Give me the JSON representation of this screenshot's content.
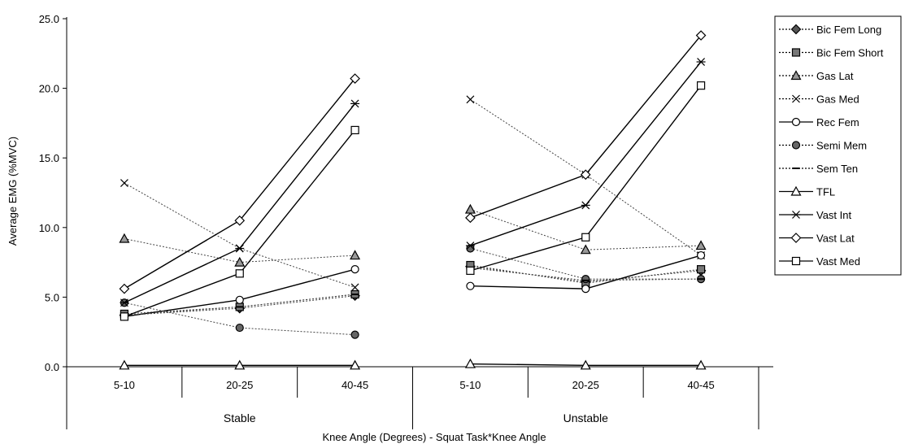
{
  "chart_data": {
    "type": "line",
    "xlabel": "Knee Angle (Degrees) - Squat Task*Knee Angle",
    "ylabel": "Average EMG (%MVC)",
    "ylim": [
      0,
      25
    ],
    "yticks": [
      "0.0",
      "5.0",
      "10.0",
      "15.0",
      "20.0",
      "25.0"
    ],
    "groups": [
      {
        "label": "Stable",
        "categories": [
          "5-10",
          "20-25",
          "40-45"
        ]
      },
      {
        "label": "Unstable",
        "categories": [
          "5-10",
          "20-25",
          "40-45"
        ]
      }
    ],
    "legend_position": "right",
    "series": [
      {
        "name": "Bic Fem Long",
        "marker": "diamond-filled",
        "dash": "dotted",
        "values": [
          [
            3.7,
            4.2,
            5.1
          ],
          [
            7.2,
            6.1,
            6.9
          ]
        ]
      },
      {
        "name": "Bic Fem Short",
        "marker": "square-filled",
        "dash": "dotted",
        "values": [
          [
            3.8,
            4.3,
            5.2
          ],
          [
            7.3,
            6.0,
            7.0
          ]
        ]
      },
      {
        "name": "Gas Lat",
        "marker": "triangle-filled",
        "dash": "dotted",
        "values": [
          [
            9.2,
            7.5,
            8.0
          ],
          [
            11.3,
            8.4,
            8.7
          ]
        ]
      },
      {
        "name": "Gas Med",
        "marker": "x",
        "dash": "dotted",
        "values": [
          [
            13.2,
            8.5,
            5.7
          ],
          [
            19.2,
            13.8,
            8.0
          ]
        ]
      },
      {
        "name": "Rec Fem",
        "marker": "circle-open",
        "dash": "solid",
        "values": [
          [
            3.6,
            4.8,
            7.0
          ],
          [
            5.8,
            5.6,
            8.0
          ]
        ]
      },
      {
        "name": "Semi Mem",
        "marker": "circle-filled",
        "dash": "dotted",
        "values": [
          [
            4.6,
            2.8,
            2.3
          ],
          [
            8.5,
            6.3,
            6.3
          ]
        ]
      },
      {
        "name": "Sem Ten",
        "marker": "dash",
        "dash": "dotted",
        "values": [
          [
            3.7,
            4.3,
            5.2
          ],
          [
            7.1,
            6.2,
            6.3
          ]
        ]
      },
      {
        "name": "TFL",
        "marker": "triangle-open",
        "dash": "solid",
        "values": [
          [
            0.1,
            0.1,
            0.1
          ],
          [
            0.2,
            0.1,
            0.1
          ]
        ]
      },
      {
        "name": "Vast Int",
        "marker": "asterisk",
        "dash": "solid",
        "values": [
          [
            4.6,
            8.5,
            18.9
          ],
          [
            8.7,
            11.6,
            21.9
          ]
        ]
      },
      {
        "name": "Vast Lat",
        "marker": "diamond-open",
        "dash": "solid",
        "values": [
          [
            5.6,
            10.5,
            20.7
          ],
          [
            10.7,
            13.8,
            23.8
          ]
        ]
      },
      {
        "name": "Vast Med",
        "marker": "square-open",
        "dash": "solid",
        "values": [
          [
            3.6,
            6.7,
            17.0
          ],
          [
            6.9,
            9.3,
            20.2
          ]
        ]
      }
    ]
  }
}
